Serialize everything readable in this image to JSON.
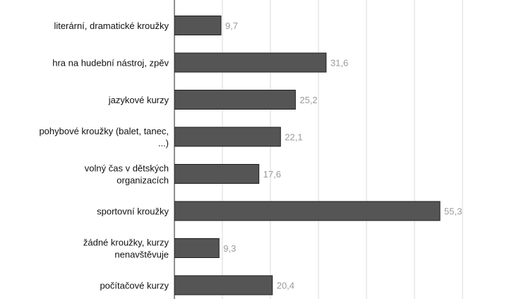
{
  "chart_data": {
    "type": "bar",
    "orientation": "horizontal",
    "categories": [
      [
        "literární, dramatické kroužky"
      ],
      [
        "hra na hudební nástroj, zpěv"
      ],
      [
        "jazykové kurzy"
      ],
      [
        "pohybové kroužky (balet, tanec,",
        "...)"
      ],
      [
        "volný čas v dětských",
        "organizacích"
      ],
      [
        "sportovní kroužky"
      ],
      [
        "žádné kroužky, kurzy",
        "nenavštěvuje"
      ],
      [
        "počítačové kurzy"
      ]
    ],
    "values": [
      9.7,
      31.6,
      25.2,
      22.1,
      17.6,
      55.3,
      9.3,
      20.4
    ],
    "value_labels": [
      "9,7",
      "31,6",
      "25,2",
      "22,1",
      "17,6",
      "55,3",
      "9,3",
      "20,4"
    ],
    "xlim": [
      0,
      70
    ],
    "grid": true,
    "colors": {
      "bar": "#555555",
      "value_label": "#9a9a9a",
      "grid": "#d9d9d9"
    }
  }
}
